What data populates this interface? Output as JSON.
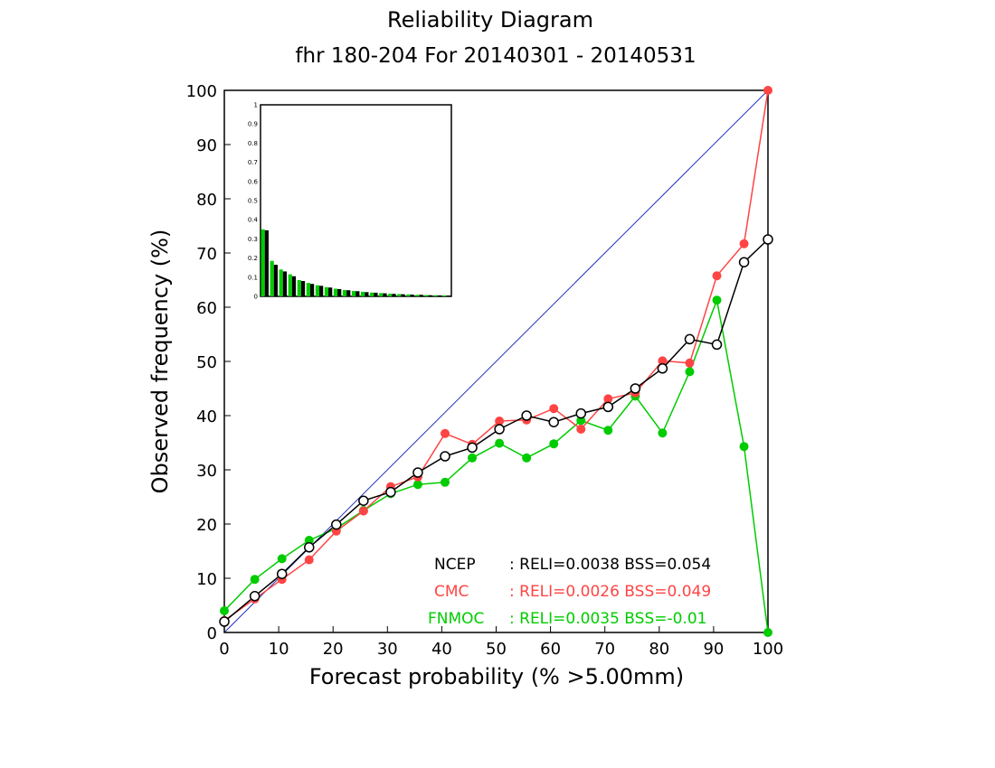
{
  "chart_data": {
    "type": "line",
    "title": "Reliability Diagram",
    "subtitle": "fhr 180-204 For 20140301 - 20140531",
    "xlabel": "Forecast probability (% >5.00mm)",
    "ylabel": "Observed frequency (%)",
    "xlim": [
      0,
      100
    ],
    "ylim": [
      0,
      100
    ],
    "x_ticks": [
      "0",
      "10",
      "20",
      "30",
      "40",
      "50",
      "60",
      "70",
      "80",
      "90",
      "100"
    ],
    "y_ticks": [
      "0",
      "10",
      "20",
      "30",
      "40",
      "50",
      "60",
      "70",
      "80",
      "90",
      "100"
    ],
    "grid": false,
    "legend_placement": "bottom-right",
    "series": [
      {
        "name": "NCEP",
        "color": "#000000",
        "marker": "open-circle",
        "stats": ": RELI=0.0038 BSS=0.054",
        "x": [
          0,
          5.6,
          10.6,
          15.6,
          20.6,
          25.6,
          30.6,
          35.6,
          40.6,
          45.6,
          50.6,
          55.6,
          60.6,
          65.6,
          70.6,
          75.6,
          80.6,
          85.6,
          90.6,
          95.6,
          100
        ],
        "y": [
          2.0,
          6.7,
          10.8,
          15.7,
          19.9,
          24.3,
          25.9,
          29.5,
          32.5,
          34.1,
          37.5,
          40.0,
          38.8,
          40.4,
          41.6,
          45.0,
          48.7,
          54.1,
          53.1,
          68.3,
          72.5
        ]
      },
      {
        "name": "CMC",
        "color": "#ff4444",
        "marker": "filled-circle",
        "stats": ": RELI=0.0026 BSS=0.049",
        "x": [
          0,
          5.6,
          10.6,
          15.6,
          20.6,
          25.6,
          30.6,
          35.6,
          40.6,
          45.6,
          50.6,
          55.6,
          60.6,
          65.6,
          70.6,
          75.6,
          80.6,
          85.6,
          90.6,
          95.6,
          100
        ],
        "y": [
          2.2,
          6.2,
          9.8,
          13.4,
          18.7,
          22.4,
          26.9,
          28.7,
          36.7,
          34.7,
          39.0,
          39.2,
          41.3,
          37.5,
          43.1,
          44.2,
          50.1,
          49.7,
          65.8,
          71.7,
          100
        ]
      },
      {
        "name": "FNMOC",
        "color": "#00cc00",
        "marker": "filled-circle",
        "stats": ": RELI=0.0035 BSS=-0.01",
        "x": [
          0,
          5.6,
          10.6,
          15.6,
          20.6,
          25.6,
          30.6,
          35.6,
          40.6,
          45.6,
          50.6,
          55.6,
          60.6,
          65.6,
          70.6,
          75.6,
          80.6,
          85.6,
          90.6,
          95.6,
          100
        ],
        "y": [
          4.0,
          9.8,
          13.6,
          17.0,
          19.2,
          22.5,
          25.6,
          27.3,
          27.7,
          32.2,
          34.9,
          32.2,
          34.8,
          39.1,
          37.3,
          43.6,
          36.8,
          48.1,
          61.3,
          34.3,
          0.0
        ]
      }
    ],
    "diagonal_color": "#2233bb",
    "inset": {
      "type": "bar",
      "ylim": [
        0,
        1
      ],
      "y_ticks": [
        "0",
        "0.1",
        "0.2",
        "0.3",
        "0.4",
        "0.5",
        "0.6",
        "0.7",
        "0.8",
        "0.9",
        "1"
      ],
      "series": [
        {
          "name": "FNMOC",
          "color": "#00cc00",
          "values": [
            0.35,
            0.185,
            0.14,
            0.115,
            0.085,
            0.07,
            0.058,
            0.048,
            0.04,
            0.033,
            0.028,
            0.024,
            0.02,
            0.017,
            0.014,
            0.012,
            0.01,
            0.008,
            0.007,
            0.006,
            0.005
          ]
        },
        {
          "name": "NCEP",
          "color": "#000000",
          "values": [
            0.345,
            0.165,
            0.13,
            0.105,
            0.08,
            0.065,
            0.055,
            0.046,
            0.038,
            0.032,
            0.027,
            0.022,
            0.019,
            0.016,
            0.013,
            0.011,
            0.009,
            0.008,
            0.006,
            0.005,
            0.004
          ]
        }
      ]
    }
  }
}
